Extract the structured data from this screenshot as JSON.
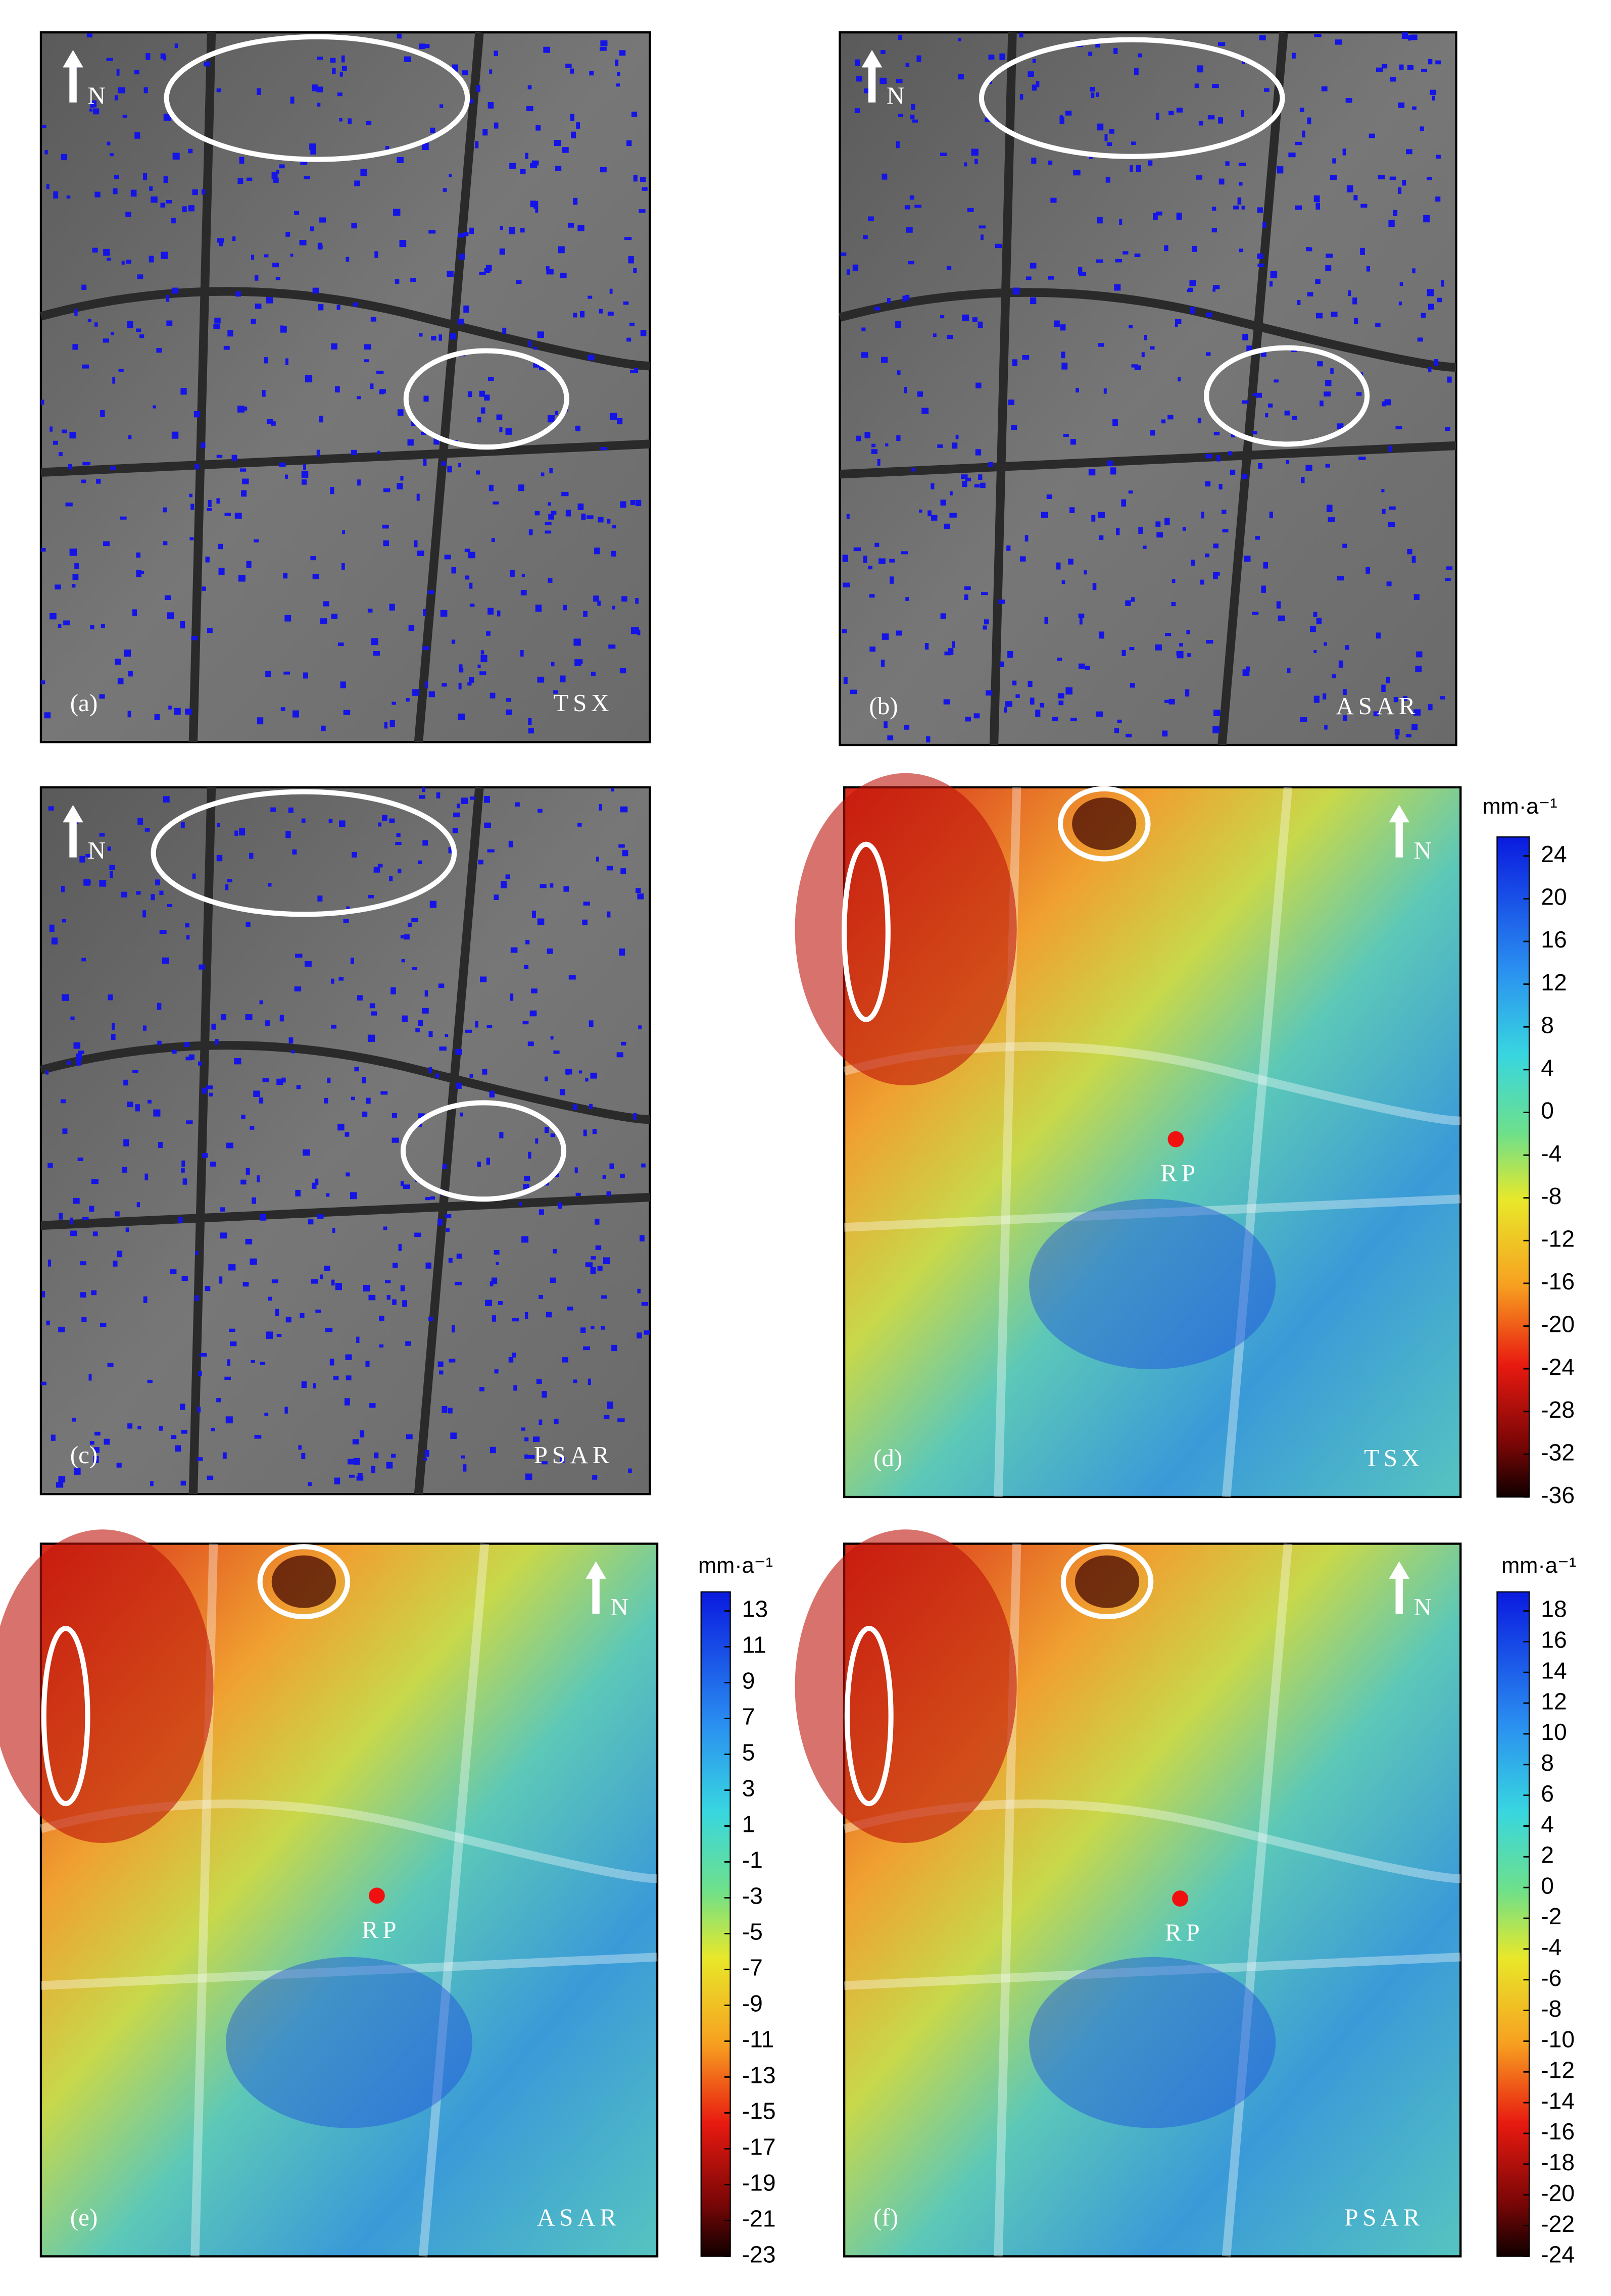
{
  "panels": [
    {
      "label": "(a)",
      "sensor": "TSX",
      "north": "N"
    },
    {
      "label": "(b)",
      "sensor": "ASAR",
      "north": "N"
    },
    {
      "label": "(c)",
      "sensor": "PSAR",
      "north": "N"
    },
    {
      "label": "(d)",
      "sensor": "TSX",
      "north": "N",
      "reference_point": "RP",
      "colorbar": {
        "unit": "mm·a⁻¹",
        "ticks": [
          24,
          20,
          16,
          12,
          8,
          4,
          0,
          -4,
          -8,
          -12,
          -16,
          -20,
          -24,
          -28,
          -32,
          -36
        ]
      }
    },
    {
      "label": "(e)",
      "sensor": "ASAR",
      "north": "N",
      "reference_point": "RP",
      "colorbar": {
        "unit": "mm·a⁻¹",
        "ticks": [
          13,
          11,
          9,
          7,
          5,
          3,
          1,
          -1,
          -3,
          -5,
          -7,
          -9,
          -11,
          -13,
          -15,
          -17,
          -19,
          -21,
          -23
        ]
      }
    },
    {
      "label": "(f)",
      "sensor": "PSAR",
      "north": "N",
      "reference_point": "RP",
      "colorbar": {
        "unit": "mm·a⁻¹",
        "ticks": [
          18,
          16,
          14,
          12,
          10,
          8,
          6,
          4,
          2,
          0,
          -2,
          -4,
          -6,
          -8,
          -10,
          -12,
          -14,
          -16,
          -18,
          -20,
          -22,
          -24
        ]
      }
    }
  ]
}
